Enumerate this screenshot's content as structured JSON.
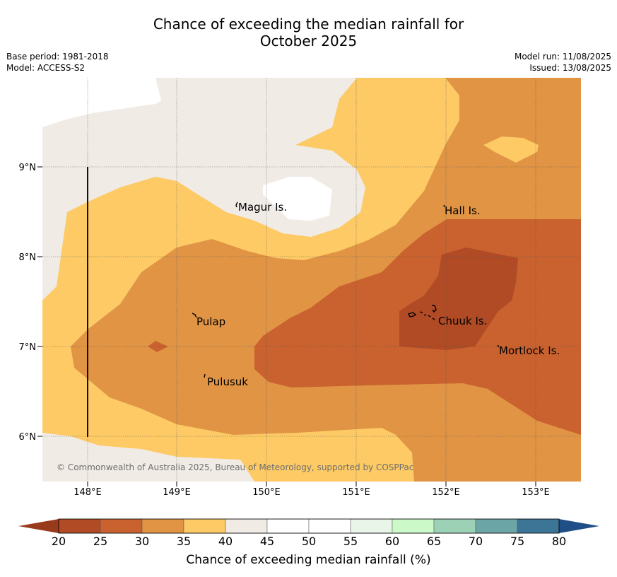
{
  "title_line1": "Chance of exceeding the median rainfall for",
  "title_line2": "October 2025",
  "meta_left": [
    "Base period: 1981-2018",
    "Model: ACCESS-S2"
  ],
  "meta_right": [
    "Model run: 11/08/2025",
    "Issued: 13/08/2025"
  ],
  "map": {
    "lat_labels": [
      "9°N",
      "8°N",
      "7°N",
      "6°N"
    ],
    "lon_labels": [
      "148°E",
      "149°E",
      "150°E",
      "151°E",
      "152°E",
      "153°E"
    ],
    "places": [
      "Magur Is.",
      "Hall Is.",
      "Pulap",
      "Chuuk Is.",
      "Mortlock Is.",
      "Pulusuk"
    ],
    "copyright": "© Commonwealth of Australia 2025, Bureau of Meteorology, supported by COSPPac"
  },
  "colorbar": {
    "ticks": [
      "20",
      "25",
      "30",
      "35",
      "40",
      "45",
      "50",
      "55",
      "60",
      "65",
      "70",
      "75",
      "80"
    ],
    "colors": [
      "#b04b25",
      "#c9622f",
      "#e09444",
      "#fdca65",
      "#f0ebe5",
      "#ffffff",
      "#ffffff",
      "#e9f5e8",
      "#ccf9c8",
      "#9dd1b6",
      "#6ca5a6",
      "#3d7597"
    ],
    "under_color": "#9a3a1d",
    "over_color": "#1f4f86",
    "label": "Chance of exceeding median rainfall (%)"
  }
}
